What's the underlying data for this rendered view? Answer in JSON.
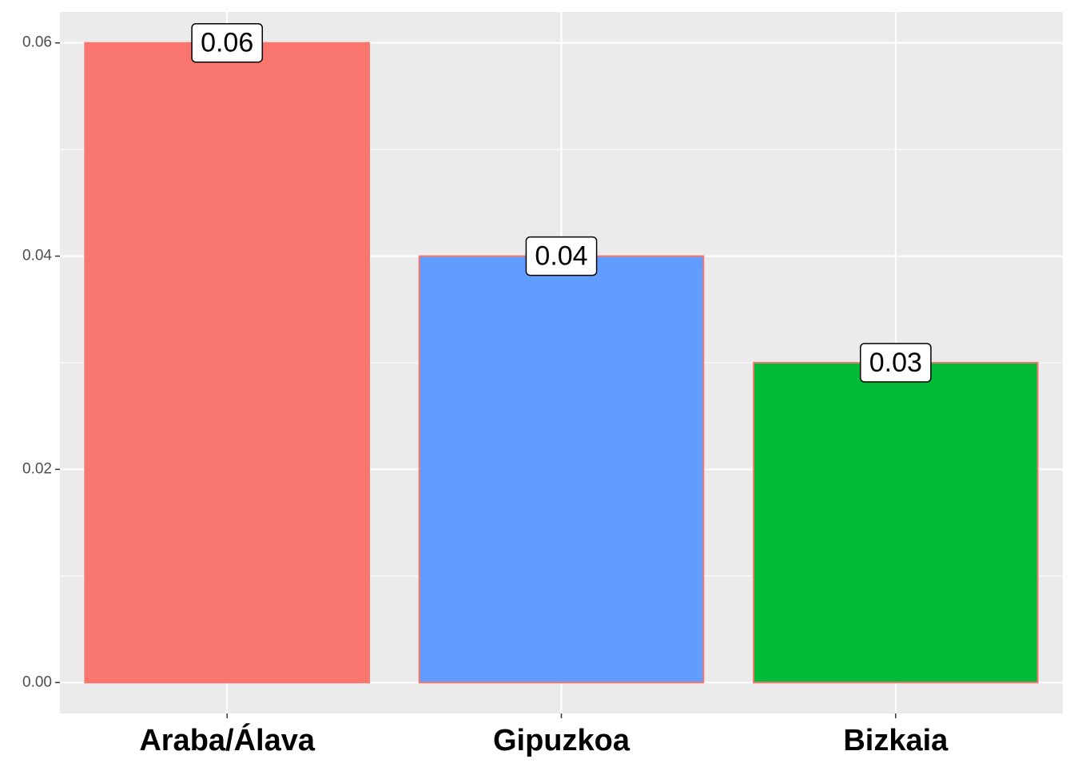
{
  "chart_data": {
    "type": "bar",
    "categories": [
      "Araba/Álava",
      "Gipuzkoa",
      "Bizkaia"
    ],
    "values": [
      0.06,
      0.04,
      0.03
    ],
    "colors": [
      "#F8766D",
      "#619CFF",
      "#00BA38"
    ],
    "outline": "#F8766D",
    "ylim": [
      -0.0029,
      0.0629
    ],
    "yticks": [
      {
        "value": 0,
        "label": "0.00"
      },
      0.02,
      0.04,
      0.06
    ],
    "grid": true
  }
}
